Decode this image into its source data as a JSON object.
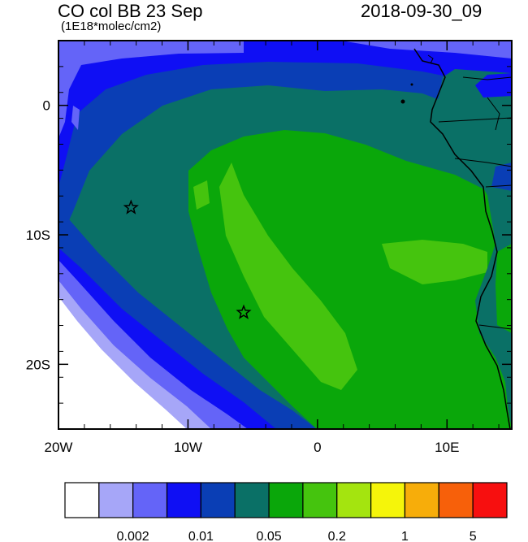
{
  "title_left": "CO col BB 23 Sep",
  "title_right": "2018-09-30_09",
  "subtitle": "(1E18*molec/cm2)",
  "map": {
    "lon_range": [
      -20,
      15
    ],
    "lat_range": [
      -25,
      5
    ],
    "x_ticks": [
      {
        "lon": -20,
        "label": "20W"
      },
      {
        "lon": -10,
        "label": "10W"
      },
      {
        "lon": 0,
        "label": "0"
      },
      {
        "lon": 10,
        "label": "10E"
      }
    ],
    "y_ticks": [
      {
        "lat": 0,
        "label": "0"
      },
      {
        "lat": -10,
        "label": "10S"
      },
      {
        "lat": -20,
        "label": "20S"
      }
    ],
    "markers": [
      {
        "name": "star-marker-ascension",
        "lon": -14.4,
        "lat": -7.9
      },
      {
        "name": "star-marker-st-helena",
        "lon": -5.7,
        "lat": -16.0
      }
    ]
  },
  "colorbar": {
    "colors": [
      "#ffffff",
      "#a6a6f8",
      "#6464f8",
      "#0f0ff4",
      "#0a3eb5",
      "#0a7066",
      "#0aa70a",
      "#45c40e",
      "#a4e40f",
      "#f5f50a",
      "#f7ad0a",
      "#f7600a",
      "#f70f0f"
    ],
    "labels": [
      {
        "after_box": 2,
        "text": "0.002"
      },
      {
        "after_box": 4,
        "text": "0.01"
      },
      {
        "after_box": 6,
        "text": "0.05"
      },
      {
        "after_box": 8,
        "text": "0.2"
      },
      {
        "after_box": 10,
        "text": "1"
      },
      {
        "after_box": 12,
        "text": "5"
      }
    ]
  }
}
